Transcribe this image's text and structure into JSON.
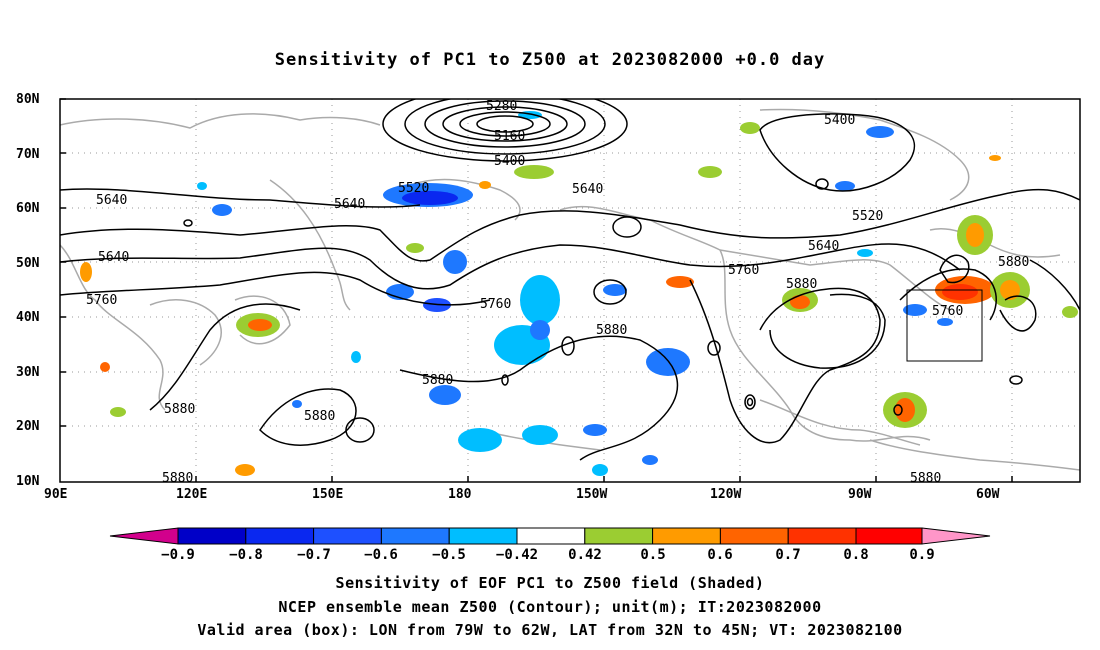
{
  "title": "Sensitivity of PC1 to Z500 at 2023082000 +0.0 day",
  "lat_labels": [
    "80N",
    "70N",
    "60N",
    "50N",
    "40N",
    "30N",
    "20N",
    "10N"
  ],
  "lon_labels": [
    "90E",
    "120E",
    "150E",
    "180",
    "150W",
    "120W",
    "90W",
    "60W"
  ],
  "contour_labels": {
    "c5280": "5280",
    "c5160": "5160",
    "c5400a": "5400",
    "c5400b": "5400",
    "c5520a": "5520",
    "c5520b": "5520",
    "c5640a": "5640",
    "c5640b": "5640",
    "c5640c": "5640",
    "c5640d": "5640",
    "c5640e": "5640",
    "c5760a": "5760",
    "c5760b": "5760",
    "c5760c": "5760",
    "c5760d": "5760",
    "c5880a": "5880",
    "c5880b": "5880",
    "c5880c": "5880",
    "c5880d": "5880",
    "c5880e": "5880",
    "c5880f": "5880",
    "c5880g": "5880",
    "c5880h": "5880"
  },
  "colorbar": {
    "labels": [
      "−0.9",
      "−0.8",
      "−0.7",
      "−0.6",
      "−0.5",
      "−0.42",
      "0.42",
      "0.5",
      "0.6",
      "0.7",
      "0.8",
      "0.9"
    ],
    "colors": [
      "#d2008c",
      "#0000c8",
      "#0a28f0",
      "#1e50ff",
      "#1e78ff",
      "#00beff",
      "#ffffff",
      "#9bcd32",
      "#ff9b00",
      "#ff6400",
      "#ff3200",
      "#ff0000",
      "#ff96c8"
    ]
  },
  "footer": {
    "line1": "Sensitivity of EOF PC1 to Z500 field (Shaded)",
    "line2": "NCEP ensemble mean Z500 (Contour); unit(m); IT:2023082000",
    "line3": "Valid area (box): LON from 79W to 62W, LAT from 32N to 45N; VT: 2023082100"
  }
}
